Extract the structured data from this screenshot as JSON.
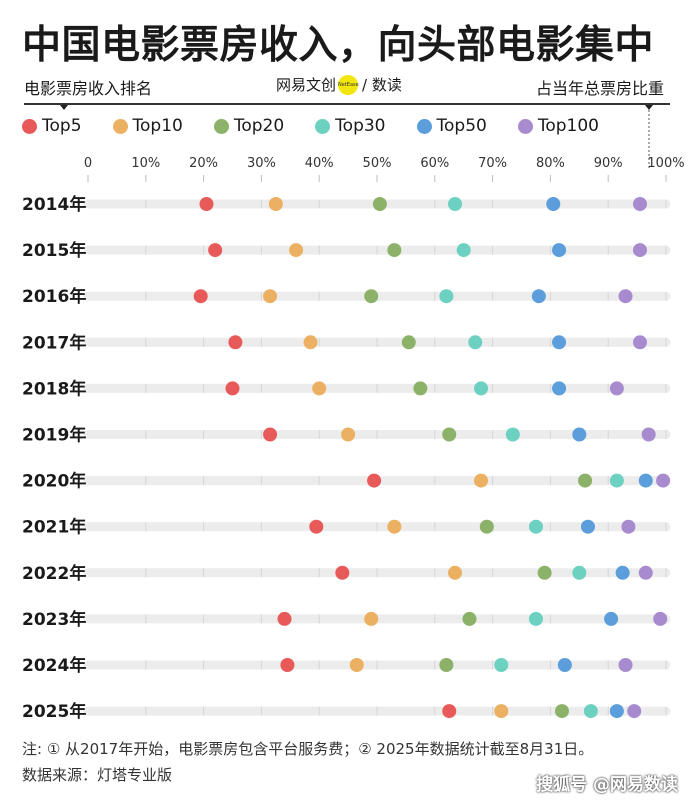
{
  "header": {
    "title": "中国电影票房收入，向头部电影集中",
    "subtitle_left": "电影票房收入排名",
    "subtitle_right": "占当年总票房比重",
    "brand_text": "网易文创",
    "brand_badge": "NetEase",
    "brand_suffix": "/ 数读"
  },
  "colors": {
    "Top5": "#e85a5a",
    "Top10": "#ebb062",
    "Top20": "#8cb26a",
    "Top30": "#6cd1c0",
    "Top50": "#5b9edb",
    "Top100": "#a88bce",
    "track": "#ececec"
  },
  "chart_data": {
    "type": "scatter",
    "x_ticks": [
      "0",
      "10%",
      "20%",
      "30%",
      "40%",
      "50%",
      "60%",
      "70%",
      "80%",
      "90%",
      "100%"
    ],
    "xlim": [
      0,
      100
    ],
    "categories": [
      "2014年",
      "2015年",
      "2016年",
      "2017年",
      "2018年",
      "2019年",
      "2020年",
      "2021年",
      "2022年",
      "2023年",
      "2024年",
      "2025年"
    ],
    "series": [
      {
        "name": "Top5",
        "values": [
          20.5,
          22,
          19.5,
          25.5,
          25,
          31.5,
          49.5,
          39.5,
          44,
          34,
          34.5,
          62.5
        ]
      },
      {
        "name": "Top10",
        "values": [
          32.5,
          36,
          31.5,
          38.5,
          40,
          45,
          68,
          53,
          63.5,
          49,
          46.5,
          71.5
        ]
      },
      {
        "name": "Top20",
        "values": [
          50.5,
          53,
          49,
          55.5,
          57.5,
          62.5,
          86,
          69,
          79,
          66,
          62,
          82
        ]
      },
      {
        "name": "Top30",
        "values": [
          63.5,
          65,
          62,
          67,
          68,
          73.5,
          91.5,
          77.5,
          85,
          77.5,
          71.5,
          87
        ]
      },
      {
        "name": "Top50",
        "values": [
          80.5,
          81.5,
          78,
          81.5,
          81.5,
          85,
          96.5,
          86.5,
          92.5,
          90.5,
          82.5,
          91.5
        ]
      },
      {
        "name": "Top100",
        "values": [
          95.5,
          95.5,
          93,
          95.5,
          91.5,
          97,
          99.5,
          93.5,
          96.5,
          99,
          93,
          94.5
        ]
      }
    ]
  },
  "footer": {
    "note": "注: ① 从2017年开始，电影票房包含平台服务费；② 2025年数据统计截至8月31日。",
    "source": "数据来源：灯塔专业版",
    "watermark": "搜狐号 @网易数读"
  }
}
